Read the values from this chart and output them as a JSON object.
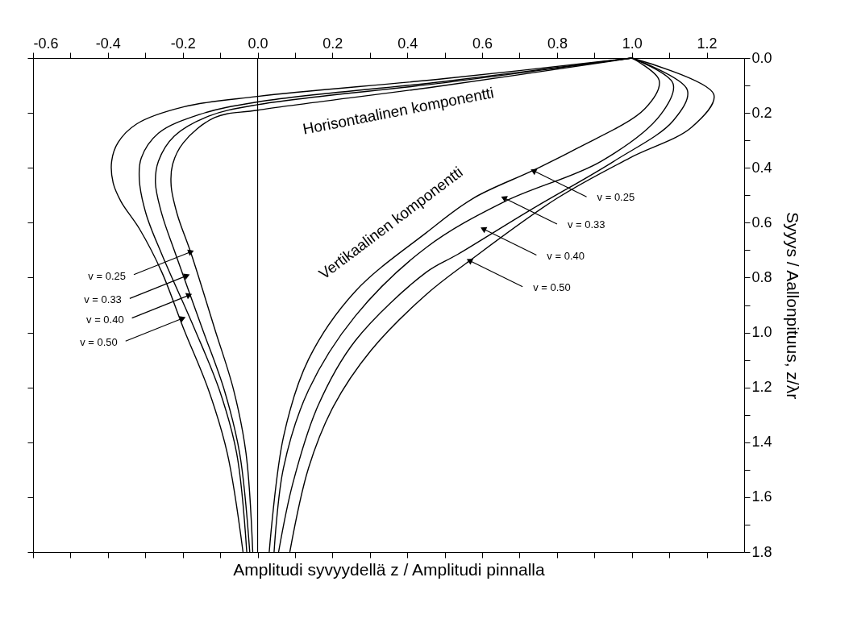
{
  "chart_data": {
    "type": "line",
    "xlabel": "Amplitudi syvyydellä z / Amplitudi pinnalla",
    "ylabel": "Syyys / Aallonpituus, z/λr",
    "xlim": [
      -0.6,
      1.3
    ],
    "ylim": [
      1.8,
      0
    ],
    "xticks": [
      -0.6,
      {
        "value": -0.5,
        "label": null
      },
      -0.4,
      {
        "value": -0.3,
        "label": null
      },
      -0.2,
      {
        "value": -0.1,
        "label": null
      },
      {
        "value": 0,
        "label": "0.0"
      },
      {
        "value": 0.1,
        "label": null
      },
      0.2,
      {
        "value": 0.3,
        "label": null
      },
      0.4,
      {
        "value": 0.5,
        "label": null
      },
      0.6,
      {
        "value": 0.7,
        "label": null
      },
      0.8,
      {
        "value": 0.9,
        "label": null
      },
      {
        "value": 1.0,
        "label": "1.0"
      },
      {
        "value": 1.1,
        "label": null
      },
      1.2
    ],
    "yticks": [
      {
        "value": 0,
        "label": "0.0"
      },
      {
        "value": 0.1,
        "label": null
      },
      0.2,
      {
        "value": 0.3,
        "label": null
      },
      0.4,
      {
        "value": 0.5,
        "label": null
      },
      0.6,
      {
        "value": 0.7,
        "label": null
      },
      0.8,
      {
        "value": 0.9,
        "label": null
      },
      {
        "value": 1.0,
        "label": "1.0"
      },
      {
        "value": 1.1,
        "label": null
      },
      1.2,
      {
        "value": 1.3,
        "label": null
      },
      1.4,
      {
        "value": 1.5,
        "label": null
      },
      1.6,
      {
        "value": 1.7,
        "label": null
      },
      1.8
    ],
    "grid": false,
    "legend": false,
    "marker": "none",
    "line_style": "solid",
    "series": [
      {
        "color": "#000000",
        "x": [
          1.0,
          0.5,
          0.0,
          -0.115,
          -0.198,
          -0.227,
          -0.231,
          -0.215,
          -0.177,
          -0.115,
          -0.064,
          -0.031,
          -0.013
        ],
        "values": [
          0,
          0.1,
          0.19,
          0.217,
          0.308,
          0.387,
          0.466,
          0.568,
          0.715,
          0.985,
          1.21,
          1.44,
          1.8
        ]
      },
      {
        "color": "#000000",
        "x": [
          1.0,
          0.5,
          0.0,
          -0.131,
          -0.223,
          -0.265,
          -0.273,
          -0.256,
          -0.219,
          -0.148,
          -0.089,
          -0.048,
          -0.021
        ],
        "values": [
          0,
          0.09,
          0.17,
          0.212,
          0.285,
          0.376,
          0.455,
          0.568,
          0.715,
          0.985,
          1.21,
          1.44,
          1.8
        ]
      },
      {
        "color": "#000000",
        "x": [
          1.0,
          0.5,
          0.0,
          -0.156,
          -0.265,
          -0.311,
          -0.316,
          -0.298,
          -0.256,
          -0.169,
          -0.102,
          -0.056,
          -0.029
        ],
        "values": [
          0,
          0.085,
          0.16,
          0.206,
          0.274,
          0.365,
          0.444,
          0.568,
          0.715,
          0.985,
          1.21,
          1.44,
          1.8
        ]
      },
      {
        "color": "#000000",
        "x": [
          1.0,
          0.5,
          0.0,
          -0.198,
          -0.323,
          -0.373,
          -0.39,
          -0.386,
          -0.365,
          -0.315,
          -0.256,
          -0.198,
          -0.131,
          -0.081,
          -0.039
        ],
        "values": [
          0,
          0.075,
          0.14,
          0.178,
          0.24,
          0.308,
          0.376,
          0.455,
          0.523,
          0.624,
          0.78,
          0.985,
          1.21,
          1.44,
          1.8
        ]
      },
      {
        "color": "#000000",
        "x": [
          1.0,
          1.073,
          1.035,
          0.851,
          0.735,
          0.576,
          0.451,
          0.261,
          0.136,
          0.069,
          0.031
        ],
        "values": [
          0,
          0.082,
          0.184,
          0.331,
          0.41,
          0.511,
          0.636,
          0.85,
          1.098,
          1.381,
          1.8
        ]
      },
      {
        "color": "#000000",
        "x": [
          1.0,
          1.11,
          1.077,
          0.918,
          0.66,
          0.451,
          0.261,
          0.136,
          0.069,
          0.044
        ],
        "values": [
          0,
          0.093,
          0.206,
          0.376,
          0.523,
          0.69,
          0.94,
          1.21,
          1.494,
          1.8
        ]
      },
      {
        "color": "#000000",
        "x": [
          1.0,
          1.148,
          1.11,
          0.952,
          0.726,
          0.535,
          0.451,
          0.261,
          0.161,
          0.094,
          0.056
        ],
        "values": [
          0,
          0.116,
          0.229,
          0.376,
          0.556,
          0.715,
          0.78,
          1.03,
          1.268,
          1.55,
          1.8
        ]
      },
      {
        "color": "#000000",
        "x": [
          1.0,
          1.219,
          1.16,
          0.993,
          0.8,
          0.568,
          0.451,
          0.303,
          0.203,
          0.136,
          0.086
        ],
        "values": [
          0,
          0.133,
          0.252,
          0.365,
          0.511,
          0.737,
          0.861,
          1.065,
          1.268,
          1.494,
          1.8
        ]
      }
    ],
    "ref_lines": [
      {
        "axis": "x",
        "value": 0,
        "color": "#000000"
      }
    ],
    "annotations": [
      "Horisontaalinen komponentti",
      "Vertikaalinen komponentti",
      {
        "text": "v = 0.25",
        "x": -0.18,
        "y": 0.707
      },
      {
        "text": "v = 0.33",
        "x": -0.191,
        "y": 0.794
      },
      {
        "text": "v = 0.40",
        "x": -0.185,
        "y": 0.865
      },
      {
        "text": "v = 0.50",
        "x": -0.202,
        "y": 0.949
      },
      {
        "text": "v = 0.25",
        "x": 0.739,
        "y": 0.412
      },
      {
        "text": "v = 0.33",
        "x": 0.66,
        "y": 0.511
      },
      {
        "text": "v = 0.40",
        "x": 0.605,
        "y": 0.624
      },
      {
        "text": "v = 0.50",
        "x": 0.568,
        "y": 0.739
      }
    ]
  }
}
